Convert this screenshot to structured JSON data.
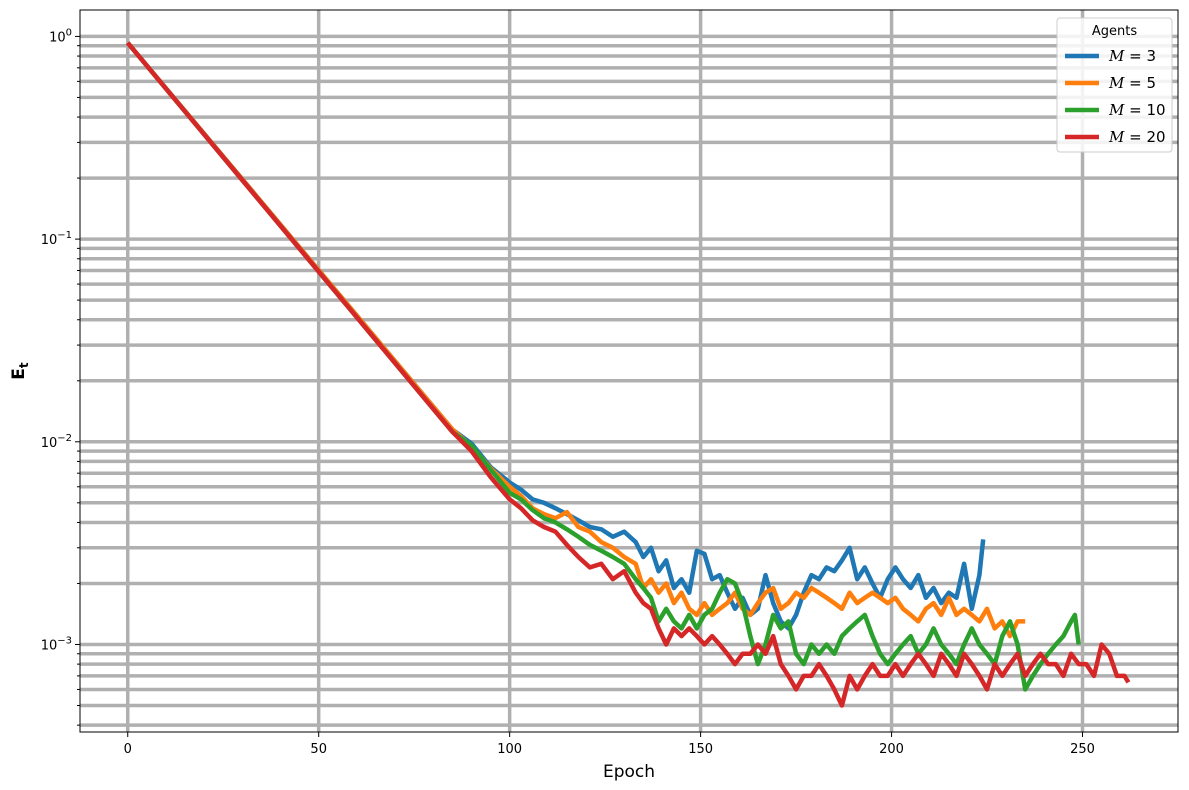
{
  "chart_data": {
    "type": "line",
    "xlabel": "Epoch",
    "ylabel": "E",
    "ylabel_subscript": "t",
    "yscale": "log",
    "xlim": [
      -12.5,
      275
    ],
    "ylim": [
      0.00037,
      1.35
    ],
    "xticks": [
      0,
      50,
      100,
      150,
      200,
      250
    ],
    "xtick_labels": [
      "0",
      "50",
      "100",
      "150",
      "200",
      "250"
    ],
    "yticks_major": [
      1,
      0.1,
      0.01,
      0.001
    ],
    "ytick_labels": [
      {
        "base": "10",
        "exp": "0"
      },
      {
        "base": "10",
        "exp": "−1"
      },
      {
        "base": "10",
        "exp": "−2"
      },
      {
        "base": "10",
        "exp": "−3"
      }
    ],
    "grid": true,
    "grid_minor": true,
    "legend_title": "Agents",
    "legend_position": "top-right",
    "series": [
      {
        "name": "M = 3",
        "name_var": "M",
        "name_val": "3",
        "color": "#1f77b4",
        "points": [
          [
            0,
            0.93
          ],
          [
            85,
            0.0115
          ],
          [
            90,
            0.0098
          ],
          [
            95,
            0.0075
          ],
          [
            100,
            0.0063
          ],
          [
            103,
            0.0058
          ],
          [
            106,
            0.0052
          ],
          [
            109,
            0.005
          ],
          [
            112,
            0.0047
          ],
          [
            115,
            0.0044
          ],
          [
            118,
            0.0041
          ],
          [
            121,
            0.0038
          ],
          [
            124,
            0.0037
          ],
          [
            127,
            0.0034
          ],
          [
            130,
            0.0036
          ],
          [
            133,
            0.0032
          ],
          [
            135,
            0.0027
          ],
          [
            137,
            0.003
          ],
          [
            139,
            0.0023
          ],
          [
            141,
            0.0026
          ],
          [
            143,
            0.0019
          ],
          [
            145,
            0.0021
          ],
          [
            147,
            0.0018
          ],
          [
            149,
            0.0029
          ],
          [
            151,
            0.0028
          ],
          [
            153,
            0.0021
          ],
          [
            155,
            0.0022
          ],
          [
            157,
            0.0018
          ],
          [
            159,
            0.0015
          ],
          [
            161,
            0.0017
          ],
          [
            163,
            0.0014
          ],
          [
            165,
            0.0015
          ],
          [
            167,
            0.0022
          ],
          [
            169,
            0.0016
          ],
          [
            171,
            0.0013
          ],
          [
            173,
            0.0012
          ],
          [
            175,
            0.0014
          ],
          [
            177,
            0.0018
          ],
          [
            179,
            0.0022
          ],
          [
            181,
            0.0021
          ],
          [
            183,
            0.0024
          ],
          [
            185,
            0.0023
          ],
          [
            187,
            0.0026
          ],
          [
            189,
            0.003
          ],
          [
            191,
            0.0021
          ],
          [
            193,
            0.0024
          ],
          [
            195,
            0.002
          ],
          [
            197,
            0.0017
          ],
          [
            199,
            0.0021
          ],
          [
            201,
            0.0024
          ],
          [
            203,
            0.0021
          ],
          [
            205,
            0.0019
          ],
          [
            207,
            0.0022
          ],
          [
            209,
            0.0017
          ],
          [
            211,
            0.0019
          ],
          [
            213,
            0.0016
          ],
          [
            215,
            0.0018
          ],
          [
            217,
            0.0017
          ],
          [
            219,
            0.0025
          ],
          [
            221,
            0.0015
          ],
          [
            223,
            0.0022
          ],
          [
            224,
            0.0033
          ]
        ]
      },
      {
        "name": "M = 5",
        "name_var": "M",
        "name_val": "5",
        "color": "#ff7f0e",
        "points": [
          [
            0,
            0.93
          ],
          [
            85,
            0.0115
          ],
          [
            90,
            0.0095
          ],
          [
            95,
            0.0074
          ],
          [
            100,
            0.006
          ],
          [
            103,
            0.0054
          ],
          [
            106,
            0.0047
          ],
          [
            109,
            0.0044
          ],
          [
            112,
            0.0042
          ],
          [
            115,
            0.0045
          ],
          [
            118,
            0.0038
          ],
          [
            121,
            0.0036
          ],
          [
            124,
            0.0032
          ],
          [
            127,
            0.003
          ],
          [
            130,
            0.0027
          ],
          [
            133,
            0.0025
          ],
          [
            135,
            0.0019
          ],
          [
            137,
            0.0021
          ],
          [
            139,
            0.0018
          ],
          [
            141,
            0.002
          ],
          [
            143,
            0.0016
          ],
          [
            145,
            0.0018
          ],
          [
            147,
            0.0015
          ],
          [
            149,
            0.0014
          ],
          [
            151,
            0.0016
          ],
          [
            153,
            0.0014
          ],
          [
            155,
            0.0015
          ],
          [
            157,
            0.0016
          ],
          [
            159,
            0.0018
          ],
          [
            161,
            0.0015
          ],
          [
            163,
            0.0014
          ],
          [
            165,
            0.0016
          ],
          [
            167,
            0.0018
          ],
          [
            169,
            0.0019
          ],
          [
            171,
            0.0015
          ],
          [
            173,
            0.0016
          ],
          [
            175,
            0.0018
          ],
          [
            177,
            0.0017
          ],
          [
            179,
            0.0019
          ],
          [
            181,
            0.0018
          ],
          [
            183,
            0.0017
          ],
          [
            185,
            0.0016
          ],
          [
            187,
            0.0015
          ],
          [
            189,
            0.0018
          ],
          [
            191,
            0.0016
          ],
          [
            193,
            0.0017
          ],
          [
            195,
            0.0018
          ],
          [
            197,
            0.0017
          ],
          [
            199,
            0.0016
          ],
          [
            201,
            0.0017
          ],
          [
            203,
            0.0015
          ],
          [
            205,
            0.0014
          ],
          [
            207,
            0.0013
          ],
          [
            209,
            0.0015
          ],
          [
            211,
            0.0016
          ],
          [
            213,
            0.0014
          ],
          [
            215,
            0.0017
          ],
          [
            217,
            0.0014
          ],
          [
            219,
            0.0015
          ],
          [
            221,
            0.0014
          ],
          [
            223,
            0.0013
          ],
          [
            225,
            0.0015
          ],
          [
            227,
            0.0012
          ],
          [
            229,
            0.0013
          ],
          [
            231,
            0.0011
          ],
          [
            233,
            0.0013
          ],
          [
            235,
            0.0013
          ]
        ]
      },
      {
        "name": "M = 10",
        "name_var": "M",
        "name_val": "10",
        "color": "#2ca02c",
        "points": [
          [
            0,
            0.93
          ],
          [
            85,
            0.0112
          ],
          [
            90,
            0.0096
          ],
          [
            95,
            0.0073
          ],
          [
            100,
            0.0056
          ],
          [
            103,
            0.0052
          ],
          [
            106,
            0.0046
          ],
          [
            109,
            0.0042
          ],
          [
            112,
            0.004
          ],
          [
            115,
            0.0037
          ],
          [
            118,
            0.0034
          ],
          [
            121,
            0.0031
          ],
          [
            124,
            0.0029
          ],
          [
            127,
            0.0027
          ],
          [
            130,
            0.0025
          ],
          [
            133,
            0.0021
          ],
          [
            135,
            0.0019
          ],
          [
            137,
            0.0017
          ],
          [
            139,
            0.0013
          ],
          [
            141,
            0.0015
          ],
          [
            143,
            0.0013
          ],
          [
            145,
            0.0012
          ],
          [
            147,
            0.0014
          ],
          [
            149,
            0.0012
          ],
          [
            151,
            0.0014
          ],
          [
            153,
            0.0015
          ],
          [
            155,
            0.0018
          ],
          [
            157,
            0.0021
          ],
          [
            159,
            0.002
          ],
          [
            161,
            0.0016
          ],
          [
            163,
            0.0011
          ],
          [
            165,
            0.0008
          ],
          [
            167,
            0.001
          ],
          [
            169,
            0.0014
          ],
          [
            171,
            0.0012
          ],
          [
            173,
            0.0013
          ],
          [
            175,
            0.0009
          ],
          [
            177,
            0.0008
          ],
          [
            179,
            0.001
          ],
          [
            181,
            0.0009
          ],
          [
            183,
            0.001
          ],
          [
            185,
            0.0009
          ],
          [
            187,
            0.0011
          ],
          [
            189,
            0.0012
          ],
          [
            191,
            0.0013
          ],
          [
            193,
            0.0014
          ],
          [
            195,
            0.0011
          ],
          [
            197,
            0.0009
          ],
          [
            199,
            0.0008
          ],
          [
            201,
            0.0009
          ],
          [
            203,
            0.001
          ],
          [
            205,
            0.0011
          ],
          [
            207,
            0.0009
          ],
          [
            209,
            0.001
          ],
          [
            211,
            0.0012
          ],
          [
            213,
            0.001
          ],
          [
            215,
            0.0009
          ],
          [
            217,
            0.0008
          ],
          [
            219,
            0.001
          ],
          [
            221,
            0.0012
          ],
          [
            223,
            0.001
          ],
          [
            225,
            0.0009
          ],
          [
            227,
            0.0008
          ],
          [
            229,
            0.0011
          ],
          [
            231,
            0.0013
          ],
          [
            233,
            0.001
          ],
          [
            235,
            0.0006
          ],
          [
            237,
            0.0007
          ],
          [
            239,
            0.0008
          ],
          [
            241,
            0.0009
          ],
          [
            243,
            0.001
          ],
          [
            245,
            0.0011
          ],
          [
            247,
            0.0013
          ],
          [
            248,
            0.0014
          ],
          [
            249,
            0.001
          ]
        ]
      },
      {
        "name": "M = 20",
        "name_var": "M",
        "name_val": "20",
        "color": "#d62728",
        "points": [
          [
            0,
            0.93
          ],
          [
            85,
            0.0112
          ],
          [
            90,
            0.009
          ],
          [
            95,
            0.0067
          ],
          [
            100,
            0.0052
          ],
          [
            103,
            0.0047
          ],
          [
            106,
            0.0041
          ],
          [
            109,
            0.0038
          ],
          [
            112,
            0.0036
          ],
          [
            115,
            0.0031
          ],
          [
            118,
            0.0027
          ],
          [
            121,
            0.0024
          ],
          [
            124,
            0.0025
          ],
          [
            127,
            0.0021
          ],
          [
            130,
            0.0023
          ],
          [
            133,
            0.0018
          ],
          [
            135,
            0.0016
          ],
          [
            137,
            0.0015
          ],
          [
            139,
            0.0012
          ],
          [
            141,
            0.001
          ],
          [
            143,
            0.0012
          ],
          [
            145,
            0.0011
          ],
          [
            147,
            0.0012
          ],
          [
            149,
            0.0011
          ],
          [
            151,
            0.001
          ],
          [
            153,
            0.0011
          ],
          [
            155,
            0.001
          ],
          [
            157,
            0.0009
          ],
          [
            159,
            0.0008
          ],
          [
            161,
            0.0009
          ],
          [
            163,
            0.0009
          ],
          [
            165,
            0.001
          ],
          [
            167,
            0.0009
          ],
          [
            169,
            0.0011
          ],
          [
            171,
            0.0008
          ],
          [
            173,
            0.0007
          ],
          [
            175,
            0.0006
          ],
          [
            177,
            0.0007
          ],
          [
            179,
            0.0007
          ],
          [
            181,
            0.0008
          ],
          [
            183,
            0.0007
          ],
          [
            185,
            0.0006
          ],
          [
            187,
            0.0005
          ],
          [
            189,
            0.0007
          ],
          [
            191,
            0.0006
          ],
          [
            193,
            0.0007
          ],
          [
            195,
            0.0008
          ],
          [
            197,
            0.0007
          ],
          [
            199,
            0.0007
          ],
          [
            201,
            0.0008
          ],
          [
            203,
            0.0007
          ],
          [
            205,
            0.0008
          ],
          [
            207,
            0.0009
          ],
          [
            209,
            0.0008
          ],
          [
            211,
            0.0007
          ],
          [
            213,
            0.0009
          ],
          [
            215,
            0.0008
          ],
          [
            217,
            0.0007
          ],
          [
            219,
            0.0009
          ],
          [
            221,
            0.0008
          ],
          [
            223,
            0.0007
          ],
          [
            225,
            0.0006
          ],
          [
            227,
            0.0008
          ],
          [
            229,
            0.0007
          ],
          [
            231,
            0.0008
          ],
          [
            233,
            0.0009
          ],
          [
            235,
            0.0007
          ],
          [
            237,
            0.0008
          ],
          [
            239,
            0.0009
          ],
          [
            241,
            0.0008
          ],
          [
            243,
            0.0008
          ],
          [
            245,
            0.0007
          ],
          [
            247,
            0.0009
          ],
          [
            249,
            0.0008
          ],
          [
            251,
            0.0008
          ],
          [
            253,
            0.0007
          ],
          [
            255,
            0.001
          ],
          [
            257,
            0.0009
          ],
          [
            259,
            0.0007
          ],
          [
            261,
            0.0007
          ],
          [
            262,
            0.00065
          ]
        ]
      }
    ]
  }
}
